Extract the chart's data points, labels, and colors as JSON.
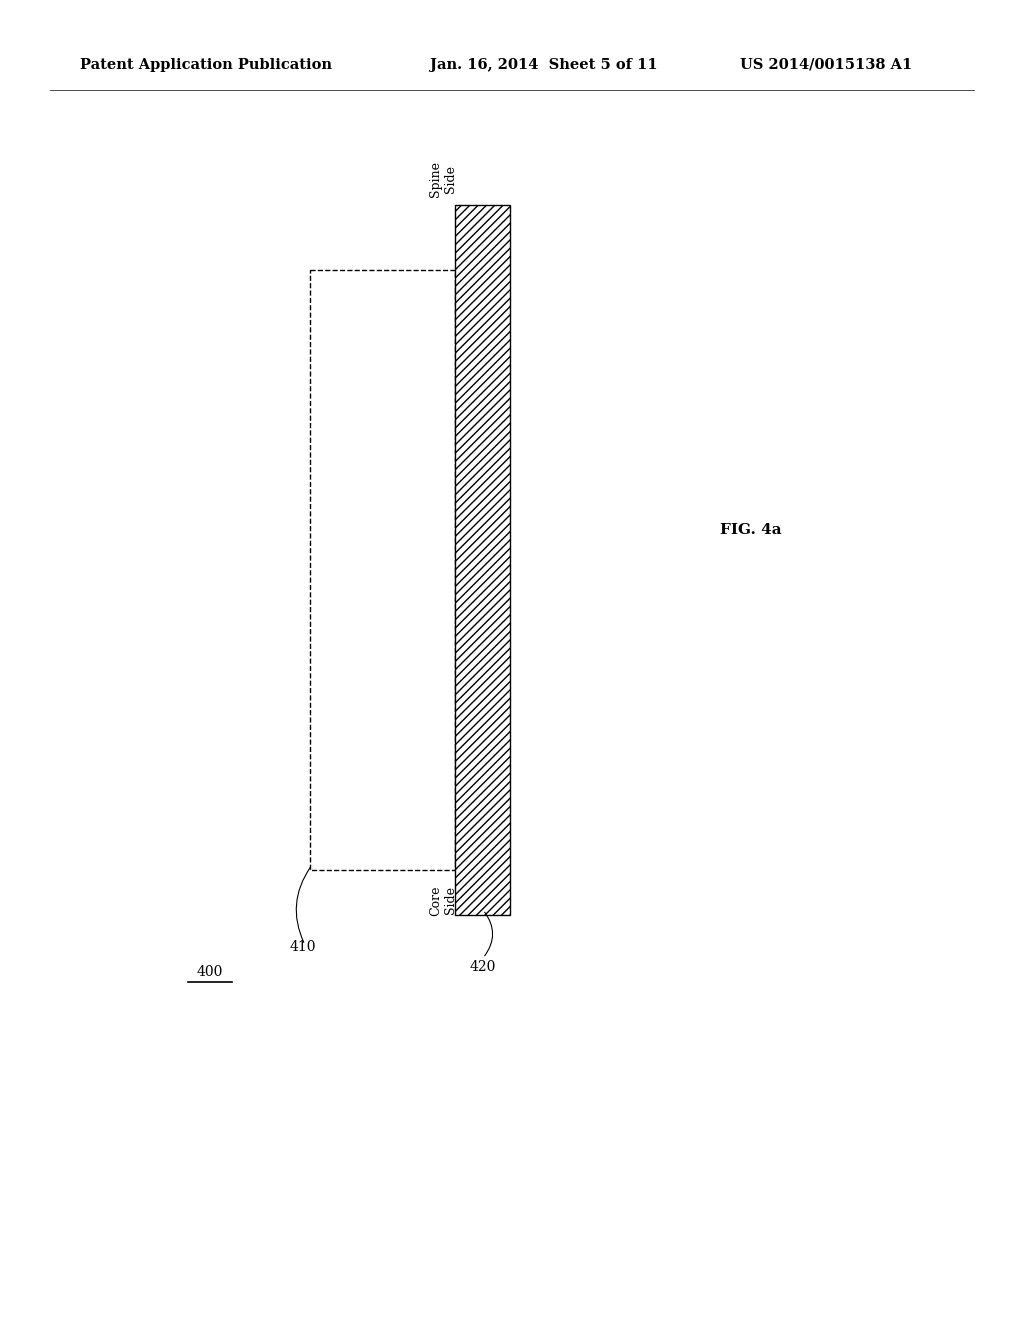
{
  "bg_color": "#ffffff",
  "header_text": "Patent Application Publication",
  "header_date": "Jan. 16, 2014  Sheet 5 of 11",
  "header_patent": "US 2014/0015138 A1",
  "fig_label": "FIG. 4a",
  "label_400": "400",
  "label_410": "410",
  "label_420": "420",
  "spine_side_text": "Spine\nSide",
  "core_side_text": "Core\nSide",
  "text_color": "#000000",
  "font_size_header": 10.5,
  "font_size_labels": 10,
  "font_size_fig": 11
}
